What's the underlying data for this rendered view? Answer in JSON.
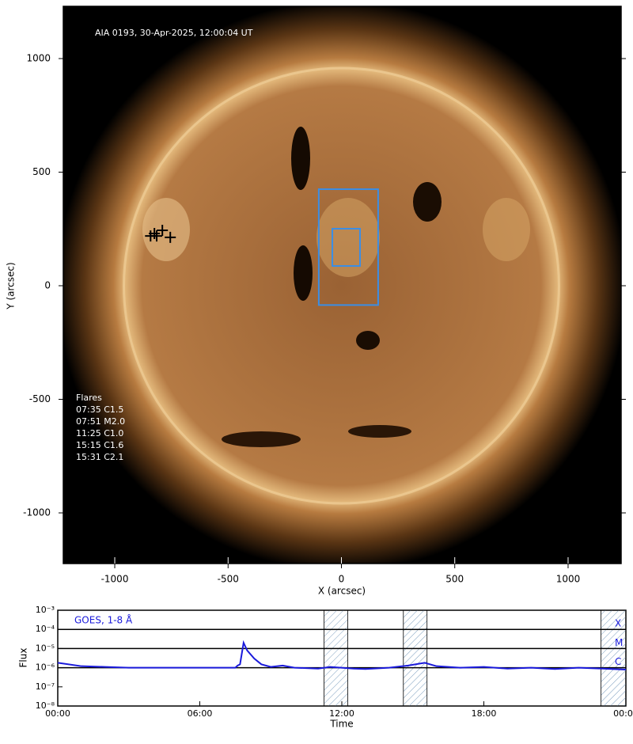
{
  "chart_data": [
    {
      "type": "image",
      "title": "AIA 0193, 30-Apr-2025, 12:00:04 UT",
      "xlabel": "X (arcsec)",
      "ylabel": "Y (arcsec)",
      "xlim": [
        -1227,
        1234
      ],
      "ylim": [
        -1223,
        1230
      ],
      "xticks": [
        -1000,
        -500,
        0,
        500,
        1000
      ],
      "yticks": [
        -1000,
        -500,
        0,
        500,
        1000
      ],
      "flares_title": "Flares",
      "flares": [
        "07:35 C1.5",
        "07:51 M2.0",
        "11:25 C1.0",
        "15:15 C1.6",
        "15:31 C2.1"
      ],
      "flare_positions": {
        "x": [
          -842,
          -815,
          -790,
          -755,
          -825
        ],
        "y": [
          219,
          219,
          244,
          213,
          230
        ]
      },
      "boxes": [
        {
          "x": [
            -100,
            162
          ],
          "y": [
            -85,
            425
          ]
        },
        {
          "x": [
            -40,
            82
          ],
          "y": [
            87,
            251
          ]
        }
      ],
      "box_color": "#3a8ee6"
    },
    {
      "type": "line",
      "xlabel": "Time",
      "ylabel": "Flux",
      "xlim": [
        0,
        24
      ],
      "ylim": [
        1e-08,
        0.001
      ],
      "log_y": true,
      "xticks": [
        {
          "value": 0,
          "label": "00:00"
        },
        {
          "value": 6,
          "label": "06:00"
        },
        {
          "value": 12,
          "label": "12:00"
        },
        {
          "value": 18,
          "label": "18:00"
        },
        {
          "value": 24,
          "label": "00:00"
        }
      ],
      "yticks": [
        {
          "value": 1e-08,
          "label": "10⁻⁸"
        },
        {
          "value": 1e-07,
          "label": "10⁻⁷"
        },
        {
          "value": 1e-06,
          "label": "10⁻⁶"
        },
        {
          "value": 1e-05,
          "label": "10⁻⁵"
        },
        {
          "value": 0.0001,
          "label": "10⁻⁴"
        },
        {
          "value": 0.001,
          "label": "10⁻³"
        }
      ],
      "class_levels": [
        {
          "value": 0.0001,
          "label": "X"
        },
        {
          "value": 1e-05,
          "label": "M"
        },
        {
          "value": 1e-06,
          "label": "C"
        }
      ],
      "shaded": [
        [
          11.25,
          12.25
        ],
        [
          14.6,
          15.6
        ],
        [
          22.95,
          24
        ]
      ],
      "series": [
        {
          "name": "GOES, 1-8 Å",
          "color": "#1a1adb",
          "x": [
            0,
            1,
            2,
            3,
            5,
            7.5,
            7.6,
            7.7,
            7.85,
            8.0,
            8.3,
            8.6,
            9,
            9.5,
            10,
            11,
            11.5,
            12.5,
            13,
            14,
            14.8,
            15.5,
            16,
            17,
            18,
            19,
            20,
            21,
            22,
            23,
            24
          ],
          "values": [
            1.8e-06,
            1.2e-06,
            1.1e-06,
            1e-06,
            1e-06,
            1e-06,
            1.3e-06,
            1.5e-06,
            2e-05,
            8e-06,
            3e-06,
            1.5e-06,
            1.1e-06,
            1.3e-06,
            1e-06,
            9e-07,
            1.1e-06,
            9e-07,
            8.5e-07,
            1e-06,
            1.3e-06,
            1.8e-06,
            1.2e-06,
            1e-06,
            1.1e-06,
            9e-07,
            1e-06,
            8.5e-07,
            1e-06,
            9e-07,
            8e-07
          ]
        }
      ]
    }
  ]
}
